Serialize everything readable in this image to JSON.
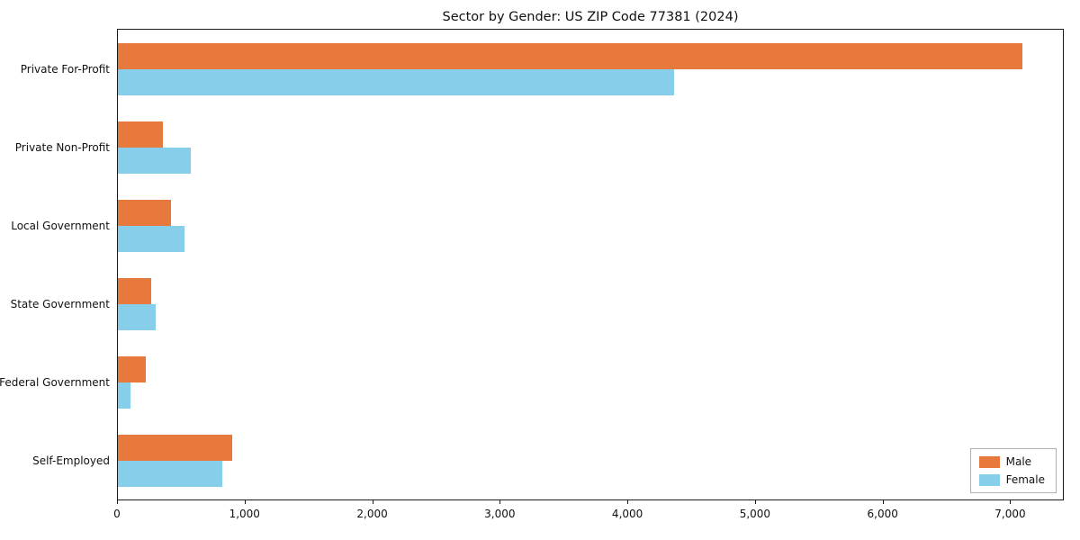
{
  "chart_data": {
    "type": "bar",
    "orientation": "horizontal",
    "title": "Sector by Gender: US ZIP Code 77381 (2024)",
    "xlabel": "",
    "ylabel": "",
    "categories": [
      "Private For-Profit",
      "Private Non-Profit",
      "Local Government",
      "State Government",
      "Federal Government",
      "Self-Employed"
    ],
    "series": [
      {
        "name": "Male",
        "color": "#e8793c",
        "values": [
          7100,
          350,
          420,
          260,
          220,
          900
        ]
      },
      {
        "name": "Female",
        "color": "#87ceeb",
        "values": [
          4370,
          570,
          520,
          300,
          100,
          820
        ]
      }
    ],
    "xlim": [
      0,
      7420
    ],
    "xticks": [
      0,
      1000,
      2000,
      3000,
      4000,
      5000,
      6000,
      7000
    ],
    "xtick_labels": [
      "0",
      "1,000",
      "2,000",
      "3,000",
      "4,000",
      "5,000",
      "6,000",
      "7,000"
    ],
    "grid": false,
    "legend_position": "lower right"
  }
}
